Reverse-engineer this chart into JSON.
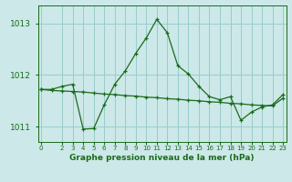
{
  "title": "Graphe pression niveau de la mer (hPa)",
  "background_color": "#cce8e8",
  "grid_color": "#99cccc",
  "line_color": "#1a6b1a",
  "hours": [
    0,
    1,
    2,
    3,
    4,
    5,
    6,
    7,
    8,
    9,
    10,
    11,
    12,
    13,
    14,
    15,
    16,
    17,
    18,
    19,
    20,
    21,
    22,
    23
  ],
  "pressure1": [
    1011.72,
    1011.72,
    1011.78,
    1011.82,
    1010.95,
    1010.96,
    1011.42,
    1011.82,
    1012.08,
    1012.42,
    1012.72,
    1013.08,
    1012.82,
    1012.18,
    1012.02,
    1011.78,
    1011.58,
    1011.52,
    1011.58,
    1011.12,
    1011.28,
    1011.38,
    1011.42,
    1011.62
  ],
  "pressure2": [
    1011.72,
    1011.7,
    1011.69,
    1011.68,
    1011.67,
    1011.65,
    1011.63,
    1011.62,
    1011.6,
    1011.59,
    1011.57,
    1011.56,
    1011.54,
    1011.53,
    1011.51,
    1011.5,
    1011.48,
    1011.47,
    1011.45,
    1011.44,
    1011.42,
    1011.41,
    1011.4,
    1011.55
  ],
  "ylim_min": 1010.7,
  "ylim_max": 1013.35,
  "yticks": [
    1011,
    1012,
    1013
  ],
  "xticks": [
    0,
    2,
    3,
    4,
    5,
    6,
    7,
    8,
    9,
    10,
    11,
    12,
    13,
    14,
    15,
    16,
    17,
    18,
    19,
    20,
    21,
    22,
    23
  ]
}
